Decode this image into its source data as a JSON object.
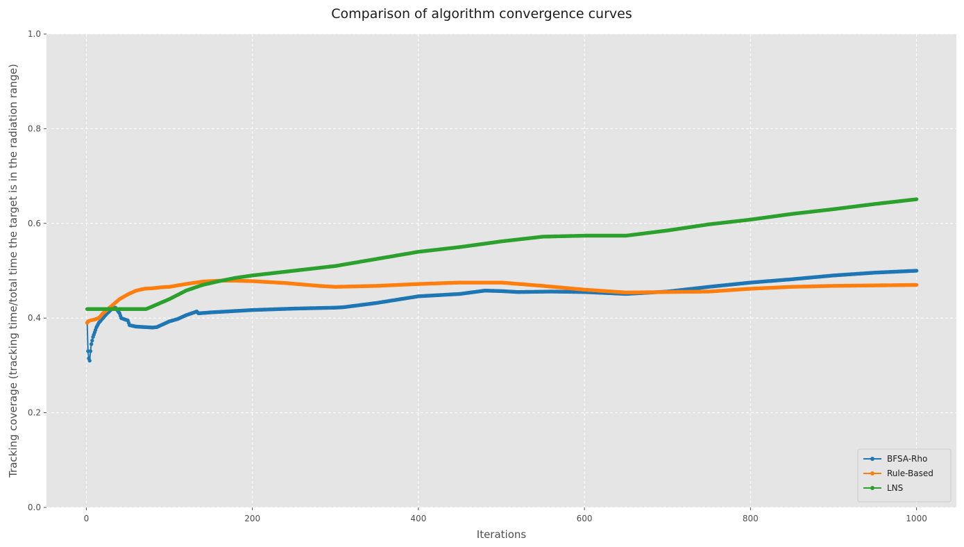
{
  "chart_data": {
    "type": "line",
    "title": "Comparison of algorithm convergence curves",
    "xlabel": "Iterations",
    "ylabel": "Tracking coverage (tracking time/total time the target is in the radiation range)",
    "xlim": [
      -48,
      1048
    ],
    "ylim": [
      0,
      1
    ],
    "xticks": [
      0,
      200,
      400,
      600,
      800,
      1000
    ],
    "yticks": [
      0.0,
      0.2,
      0.4,
      0.6,
      0.8,
      1.0
    ],
    "xtick_labels": [
      "0",
      "200",
      "400",
      "600",
      "800",
      "1000"
    ],
    "ytick_labels": [
      "0.0",
      "0.2",
      "0.4",
      "0.6",
      "0.8",
      "1.0"
    ],
    "grid": true,
    "legend_position": "bottom-right",
    "series": [
      {
        "name": "BFSA-Rho",
        "color": "#1f77b4",
        "points": [
          [
            1,
            0.39
          ],
          [
            2,
            0.33
          ],
          [
            3,
            0.315
          ],
          [
            4,
            0.31
          ],
          [
            5,
            0.33
          ],
          [
            6,
            0.345
          ],
          [
            8,
            0.36
          ],
          [
            10,
            0.37
          ],
          [
            12,
            0.38
          ],
          [
            15,
            0.39
          ],
          [
            20,
            0.4
          ],
          [
            25,
            0.41
          ],
          [
            30,
            0.418
          ],
          [
            35,
            0.422
          ],
          [
            40,
            0.41
          ],
          [
            42,
            0.4
          ],
          [
            45,
            0.398
          ],
          [
            50,
            0.395
          ],
          [
            52,
            0.385
          ],
          [
            60,
            0.382
          ],
          [
            70,
            0.381
          ],
          [
            80,
            0.38
          ],
          [
            85,
            0.381
          ],
          [
            90,
            0.385
          ],
          [
            100,
            0.393
          ],
          [
            110,
            0.398
          ],
          [
            120,
            0.406
          ],
          [
            130,
            0.412
          ],
          [
            133,
            0.414
          ],
          [
            135,
            0.41
          ],
          [
            150,
            0.412
          ],
          [
            180,
            0.415
          ],
          [
            200,
            0.417
          ],
          [
            250,
            0.42
          ],
          [
            300,
            0.422
          ],
          [
            310,
            0.423
          ],
          [
            350,
            0.432
          ],
          [
            400,
            0.446
          ],
          [
            410,
            0.447
          ],
          [
            420,
            0.448
          ],
          [
            450,
            0.451
          ],
          [
            480,
            0.458
          ],
          [
            500,
            0.457
          ],
          [
            520,
            0.455
          ],
          [
            560,
            0.456
          ],
          [
            600,
            0.455
          ],
          [
            650,
            0.451
          ],
          [
            700,
            0.456
          ],
          [
            750,
            0.466
          ],
          [
            800,
            0.475
          ],
          [
            850,
            0.482
          ],
          [
            900,
            0.49
          ],
          [
            950,
            0.496
          ],
          [
            1000,
            0.5
          ]
        ]
      },
      {
        "name": "Rule-Based",
        "color": "#ff7f0e",
        "points": [
          [
            1,
            0.39
          ],
          [
            2,
            0.393
          ],
          [
            5,
            0.395
          ],
          [
            10,
            0.397
          ],
          [
            15,
            0.4
          ],
          [
            20,
            0.41
          ],
          [
            30,
            0.425
          ],
          [
            40,
            0.44
          ],
          [
            50,
            0.45
          ],
          [
            60,
            0.458
          ],
          [
            70,
            0.462
          ],
          [
            80,
            0.463
          ],
          [
            90,
            0.465
          ],
          [
            100,
            0.466
          ],
          [
            120,
            0.472
          ],
          [
            140,
            0.477
          ],
          [
            160,
            0.479
          ],
          [
            180,
            0.479
          ],
          [
            200,
            0.478
          ],
          [
            240,
            0.474
          ],
          [
            280,
            0.468
          ],
          [
            300,
            0.466
          ],
          [
            350,
            0.468
          ],
          [
            400,
            0.472
          ],
          [
            450,
            0.475
          ],
          [
            500,
            0.475
          ],
          [
            550,
            0.468
          ],
          [
            600,
            0.46
          ],
          [
            650,
            0.454
          ],
          [
            700,
            0.455
          ],
          [
            750,
            0.456
          ],
          [
            800,
            0.462
          ],
          [
            850,
            0.466
          ],
          [
            900,
            0.468
          ],
          [
            950,
            0.469
          ],
          [
            1000,
            0.47
          ]
        ]
      },
      {
        "name": "LNS",
        "color": "#2ca02c",
        "points": [
          [
            1,
            0.419
          ],
          [
            30,
            0.419
          ],
          [
            72,
            0.419
          ],
          [
            80,
            0.425
          ],
          [
            100,
            0.44
          ],
          [
            120,
            0.458
          ],
          [
            140,
            0.47
          ],
          [
            160,
            0.478
          ],
          [
            180,
            0.485
          ],
          [
            200,
            0.49
          ],
          [
            250,
            0.5
          ],
          [
            300,
            0.51
          ],
          [
            350,
            0.525
          ],
          [
            400,
            0.54
          ],
          [
            450,
            0.55
          ],
          [
            500,
            0.562
          ],
          [
            550,
            0.572
          ],
          [
            600,
            0.574
          ],
          [
            650,
            0.574
          ],
          [
            700,
            0.585
          ],
          [
            750,
            0.598
          ],
          [
            800,
            0.608
          ],
          [
            850,
            0.62
          ],
          [
            900,
            0.63
          ],
          [
            950,
            0.641
          ],
          [
            1000,
            0.651
          ]
        ]
      }
    ]
  }
}
